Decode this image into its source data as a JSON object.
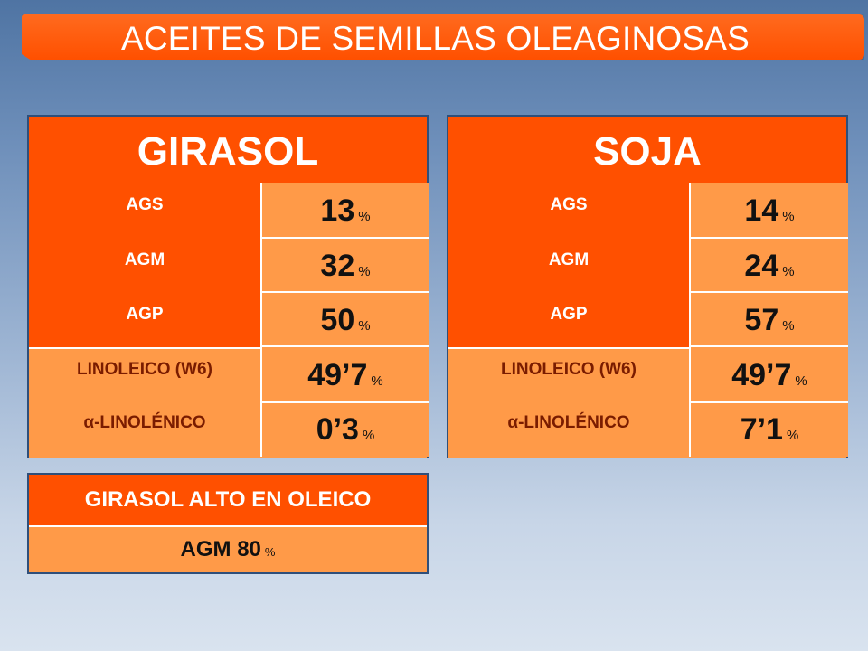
{
  "header": {
    "title": "ACEITES DE SEMILLAS OLEAGINOSAS"
  },
  "panels": [
    {
      "title": "GIRASOL",
      "rows": [
        {
          "label": "AGS",
          "value": "13",
          "unit": "%"
        },
        {
          "label": "AGM",
          "value": "32",
          "unit": "%"
        },
        {
          "label": "AGP",
          "value": "50",
          "unit": "%"
        },
        {
          "label": "LINOLEICO (W6)",
          "value": "49’7",
          "unit": "%"
        },
        {
          "label": "α-LINOLÉNICO",
          "value": "0’3",
          "unit": "%"
        }
      ]
    },
    {
      "title": "SOJA",
      "rows": [
        {
          "label": "AGS",
          "value": "14",
          "unit": "%"
        },
        {
          "label": "AGM",
          "value": "24",
          "unit": "%"
        },
        {
          "label": "AGP",
          "value": "57",
          "unit": "%"
        },
        {
          "label": "LINOLEICO (W6)",
          "value": "49’7",
          "unit": "%"
        },
        {
          "label": "α-LINOLÉNICO",
          "value": "7’1",
          "unit": "%"
        }
      ]
    }
  ],
  "oleico": {
    "title": "GIRASOL ALTO EN OLEICO",
    "label": "AGM",
    "value": "80",
    "unit": "%"
  },
  "colors": {
    "orange_dark": "#ff5000",
    "orange_light": "#ff9a48",
    "border": "#2f4f7a"
  }
}
